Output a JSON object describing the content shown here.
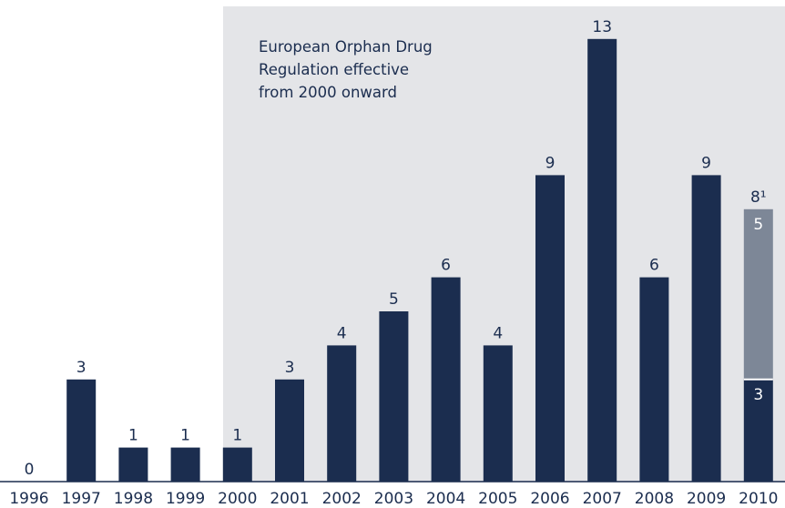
{
  "chart_data": {
    "type": "bar",
    "categories": [
      "1996",
      "1997",
      "1998",
      "1999",
      "2000",
      "2001",
      "2002",
      "2003",
      "2004",
      "2005",
      "2006",
      "2007",
      "2008",
      "2009",
      "2010"
    ],
    "values": [
      0,
      3,
      1,
      1,
      1,
      3,
      4,
      5,
      6,
      4,
      9,
      13,
      6,
      9,
      8
    ],
    "labels": [
      "0",
      "3",
      "1",
      "1",
      "1",
      "3",
      "4",
      "5",
      "6",
      "4",
      "9",
      "13",
      "6",
      "9",
      "8¹"
    ],
    "stacked_last": {
      "category": "2010",
      "segments": [
        {
          "value": 3,
          "label": "3",
          "color": "#1b2d4f"
        },
        {
          "value": 5,
          "label": "5",
          "color": "#7d8797"
        }
      ]
    },
    "annotation": {
      "lines": [
        "European Orphan Drug",
        "Regulation effective",
        "from 2000 onward"
      ],
      "shaded_from": "2000",
      "shaded_color": "#e4e5e8"
    },
    "bar_color": "#1b2d4f",
    "ylim": [
      0,
      13.4
    ],
    "xlabel": "",
    "ylabel": ""
  }
}
